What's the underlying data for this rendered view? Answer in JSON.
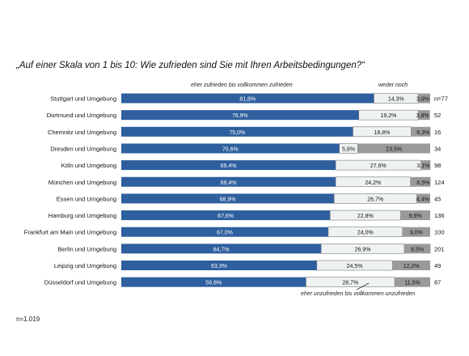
{
  "chart_data": {
    "type": "bar",
    "stacked": true,
    "orientation": "horizontal",
    "title": "„Auf einer Skala von 1 bis 10: Wie zufrieden sind Sie mit Ihren Arbeitsbedingungen?“",
    "header_labels": {
      "positive": "eher zufrieden  bis vollkommen  zufrieden",
      "neutral": "weder  noch",
      "negative": "eher unzufrieden  bis vollkommen  unzufrieden"
    },
    "footnote": "n=1.019",
    "xlim": [
      0,
      100
    ],
    "categories": [
      "Stuttgart und Umgebung",
      "Dortmund und Umgebung",
      "Chemnitz und Umgebung",
      "Dresden und Umgebung",
      "Köln und Umgebung",
      "München und Umgebung",
      "Essen und Umgebung",
      "Hamburg und Umgebung",
      "Frankfurt  am Main und Umgebung",
      "Berlin und Umgebung",
      "Leipzig und Umgebung",
      "Düsseldorf und Umgebung"
    ],
    "n_labels": [
      "n=77",
      "52",
      "16",
      "34",
      "98",
      "124",
      "45",
      "136",
      "100",
      "201",
      "49",
      "87"
    ],
    "series": [
      {
        "key": "positive",
        "color": "#2e5f9e",
        "values": [
          81.8,
          76.9,
          75.0,
          70.6,
          69.4,
          69.4,
          68.9,
          67.6,
          67.0,
          64.7,
          63.3,
          59.8
        ],
        "labels": [
          "81,8%",
          "76,9%",
          "75,0%",
          "70,6%",
          "69,4%",
          "69,4%",
          "68,9%",
          "67,6%",
          "67,0%",
          "64,7%",
          "63,3%",
          "59,8%"
        ]
      },
      {
        "key": "neutral",
        "color": "#eef2f3",
        "values": [
          14.3,
          19.2,
          18.8,
          5.9,
          27.6,
          24.2,
          26.7,
          22.8,
          24.0,
          26.9,
          24.5,
          28.7
        ],
        "labels": [
          "14,3%",
          "19,2%",
          "18,8%",
          "5,9%",
          "27,6%",
          "24,2%",
          "26,7%",
          "22,8%",
          "24,0%",
          "26,9%",
          "24,5%",
          "28,7%"
        ]
      },
      {
        "key": "negative",
        "color": "#9a9a9a",
        "values": [
          3.9,
          3.8,
          6.3,
          23.5,
          3.1,
          6.5,
          4.4,
          9.6,
          9.0,
          8.5,
          12.2,
          11.5
        ],
        "labels": [
          "3,9%",
          "3,8%",
          "6,3%",
          "23,5%",
          "3,1%",
          "6,5%",
          "4,4%",
          "9,6%",
          "9,0%",
          "8,5%",
          "12,2%",
          "11,5%"
        ]
      }
    ]
  }
}
